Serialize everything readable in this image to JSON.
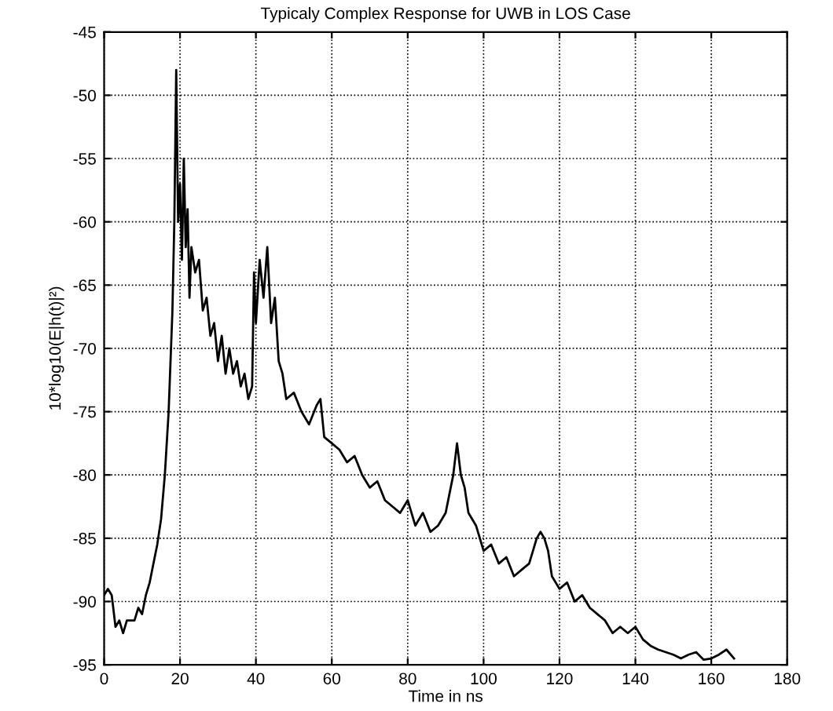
{
  "chart_data": {
    "type": "line",
    "title": "Typicaly Complex Response for UWB in LOS Case",
    "xlabel": "Time in ns",
    "ylabel": "10*log10(E|h(t)|²)",
    "series": [
      {
        "color": "#000000",
        "x": [
          0,
          1,
          2,
          3,
          4,
          5,
          6,
          8,
          9,
          10,
          11,
          12,
          13,
          14,
          15,
          16,
          17,
          18,
          18.5,
          19,
          19.5,
          20,
          20.5,
          21,
          21.5,
          22,
          22.5,
          23,
          24,
          25,
          26,
          27,
          28,
          29,
          30,
          31,
          32,
          33,
          34,
          35,
          36,
          37,
          38,
          39,
          39.5,
          40,
          41,
          42,
          43,
          44,
          45,
          46,
          47,
          48,
          50,
          52,
          54,
          56,
          57,
          58,
          60,
          62,
          64,
          66,
          68,
          70,
          72,
          74,
          76,
          78,
          80,
          82,
          84,
          86,
          88,
          90,
          92,
          93,
          94,
          95,
          96,
          98,
          100,
          102,
          104,
          106,
          108,
          110,
          112,
          114,
          115,
          116,
          117,
          118,
          120,
          122,
          124,
          126,
          128,
          130,
          132,
          134,
          136,
          138,
          140,
          142,
          144,
          146,
          148,
          150,
          152,
          154,
          156,
          158,
          160,
          162,
          164,
          166
        ],
        "values": [
          -89.5,
          -89,
          -89.5,
          -92,
          -91.5,
          -92.5,
          -91.5,
          -91.5,
          -90.5,
          -91,
          -89.5,
          -88.5,
          -87,
          -85.5,
          -83.5,
          -80,
          -75,
          -67,
          -60,
          -48,
          -60,
          -57,
          -63,
          -55,
          -62,
          -59,
          -66,
          -62,
          -64,
          -63,
          -67,
          -66,
          -69,
          -68,
          -71,
          -69,
          -72,
          -70,
          -72,
          -71,
          -73,
          -72,
          -74,
          -73,
          -64,
          -68,
          -63,
          -66,
          -62,
          -68,
          -66,
          -71,
          -72,
          -74,
          -73.5,
          -75,
          -76,
          -74.5,
          -74,
          -77,
          -77.5,
          -78,
          -79,
          -78.5,
          -80,
          -81,
          -80.5,
          -82,
          -82.5,
          -83,
          -82,
          -84,
          -83,
          -84.5,
          -84,
          -83,
          -80,
          -77.5,
          -80,
          -81,
          -83,
          -84,
          -86,
          -85.5,
          -87,
          -86.5,
          -88,
          -87.5,
          -87,
          -85,
          -84.5,
          -85,
          -86,
          -88,
          -89,
          -88.5,
          -90,
          -89.5,
          -90.5,
          -91,
          -91.5,
          -92.5,
          -92,
          -92.5,
          -92,
          -93,
          -93.5,
          -93.8,
          -94,
          -94.2,
          -94.5,
          -94.2,
          -94,
          -94.6,
          -94.5,
          -94.2,
          -93.8,
          -94.5
        ]
      }
    ],
    "xlim": [
      0,
      180
    ],
    "xticks": [
      0,
      20,
      40,
      60,
      80,
      100,
      120,
      140,
      160,
      180
    ],
    "ylim": [
      -95,
      -45
    ],
    "yticks": [
      -95,
      -90,
      -85,
      -80,
      -75,
      -70,
      -65,
      -60,
      -55,
      -50,
      -45
    ],
    "grid": true,
    "line_style": "solid"
  }
}
